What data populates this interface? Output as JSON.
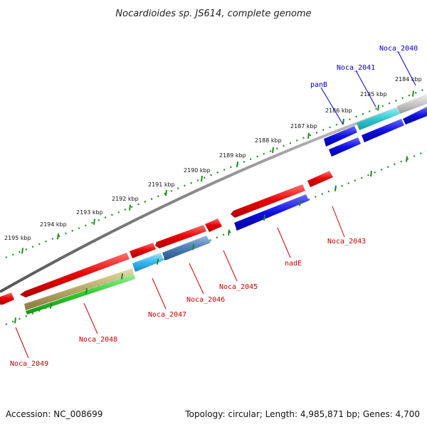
{
  "title": "Nocardioides sp. JS614, complete genome",
  "footer": {
    "accession": "Accession: NC_008699",
    "summary": "Topology: circular; Length: 4,985,871 bp; Genes: 4,700"
  },
  "colors": {
    "forward_strand": "#e60000",
    "reverse_strand": "#1010e0",
    "pseudo_gray": "#c8c8c8",
    "cyan_gene": "#30c8d0",
    "steel_gene": "#4a7fb8",
    "sky_gene": "#36b8f0",
    "tan_gene": "#b8a868",
    "green_gene": "#2ec82e",
    "backbone": "#888888",
    "tick_green": "#228822",
    "label_red": "#cc0000",
    "label_blue": "#0000cc"
  },
  "kbp_labels": [
    "2184 kbp",
    "2185 kbp",
    "2186 kbp",
    "2187 kbp",
    "2188 kbp",
    "2189 kbp",
    "2190 kbp",
    "2191 kbp",
    "2192 kbp",
    "2193 kbp",
    "2194 kbp",
    "2195 kbp"
  ],
  "genes_top": [
    "Noca_2040",
    "Noca_2041",
    "panB"
  ],
  "genes_bottom": [
    "Noca_2043",
    "nadE",
    "Noca_2045",
    "Noca_2046",
    "Noca_2047",
    "Noca_2048",
    "Noca_2049"
  ]
}
